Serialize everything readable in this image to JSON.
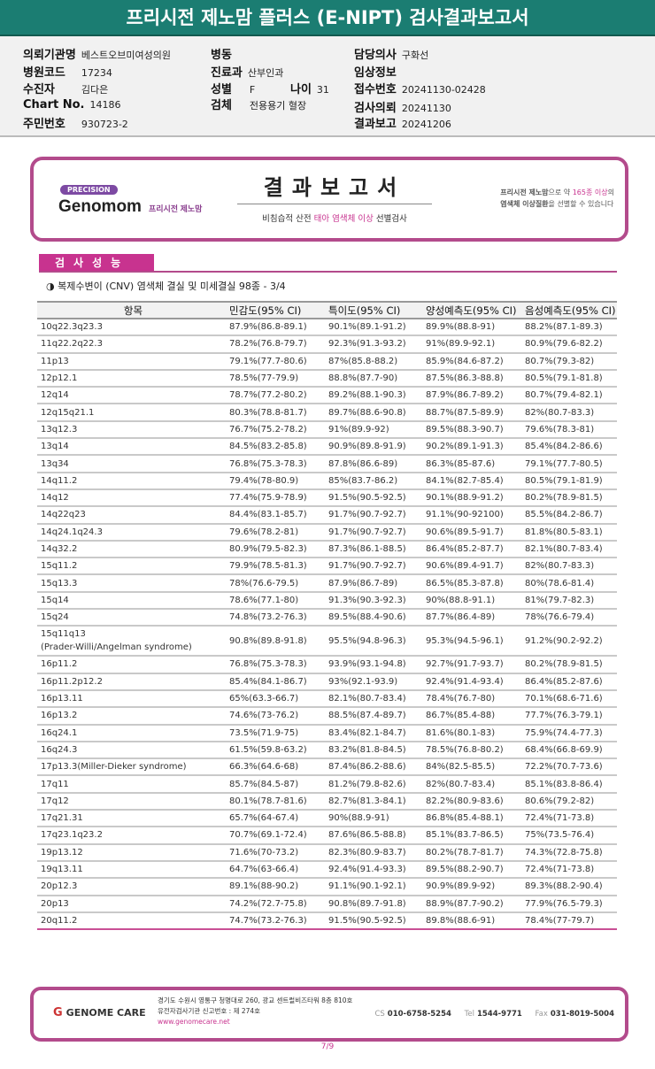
{
  "title": "프리시전 제노맘 플러스 (E-NIPT) 검사결과보고서",
  "info": {
    "institution": {
      "label": "의뢰기관명",
      "value": "베스트오브미여성의원"
    },
    "hospital_code": {
      "label": "병원코드",
      "value": "17234"
    },
    "patient": {
      "label": "수진자",
      "value": "김다은"
    },
    "chart_no": {
      "label": "Chart No.",
      "value": "14186"
    },
    "resident_no": {
      "label": "주민번호",
      "value": "930723-2"
    },
    "ward": {
      "label": "병동",
      "value": ""
    },
    "department": {
      "label": "진료과",
      "value": "산부인과"
    },
    "sex": {
      "label": "성별",
      "value": "F"
    },
    "age": {
      "label": "나이",
      "value": "31"
    },
    "specimen": {
      "label": "검체",
      "value": "전용용기 혈장"
    },
    "doctor": {
      "label": "담당의사",
      "value": "구화선"
    },
    "clinical": {
      "label": "임상정보",
      "value": ""
    },
    "receipt_no": {
      "label": "접수번호",
      "value": "20241130-02428"
    },
    "request_date": {
      "label": "검사의뢰",
      "value": "20241130"
    },
    "report_date": {
      "label": "결과보고",
      "value": "20241206"
    }
  },
  "banner": {
    "precision": "PRECISION",
    "brand": "Genomom",
    "brand_kr": "프리시전 제노맘",
    "title": "결과보고서",
    "subtitle_a": "비침습적 산전 ",
    "subtitle_b": "태아 염색체 이상",
    "subtitle_c": " 선별검사",
    "side_1a": "프리시전 제노맘",
    "side_1b": "으로 약 ",
    "side_1c": "165종 이상",
    "side_1d": "의",
    "side_2a": "염색체 이상질환",
    "side_2b": "을 선별할 수 있습니다"
  },
  "section": {
    "title": "검사성능",
    "subtitle": "◑ 복제수변이 (CNV) 염색체 결실 및 미세결실 98종 - 3/4"
  },
  "table": {
    "headers": [
      "항목",
      "민감도(95% CI)",
      "특이도(95% CI)",
      "양성예측도(95% CI)",
      "음성예측도(95% CI)"
    ],
    "rows": [
      [
        "10q22.3q23.3",
        "87.9%(86.8-89.1)",
        "90.1%(89.1-91.2)",
        "89.9%(88.8-91)",
        "88.2%(87.1-89.3)"
      ],
      [
        "11q22.2q22.3",
        "78.2%(76.8-79.7)",
        "92.3%(91.3-93.2)",
        "91%(89.9-92.1)",
        "80.9%(79.6-82.2)"
      ],
      [
        "11p13",
        "79.1%(77.7-80.6)",
        "87%(85.8-88.2)",
        "85.9%(84.6-87.2)",
        "80.7%(79.3-82)"
      ],
      [
        "12p12.1",
        "78.5%(77-79.9)",
        "88.8%(87.7-90)",
        "87.5%(86.3-88.8)",
        "80.5%(79.1-81.8)"
      ],
      [
        "12q14",
        "78.7%(77.2-80.2)",
        "89.2%(88.1-90.3)",
        "87.9%(86.7-89.2)",
        "80.7%(79.4-82.1)"
      ],
      [
        "12q15q21.1",
        "80.3%(78.8-81.7)",
        "89.7%(88.6-90.8)",
        "88.7%(87.5-89.9)",
        "82%(80.7-83.3)"
      ],
      [
        "13q12.3",
        "76.7%(75.2-78.2)",
        "91%(89.9-92)",
        "89.5%(88.3-90.7)",
        "79.6%(78.3-81)"
      ],
      [
        "13q14",
        "84.5%(83.2-85.8)",
        "90.9%(89.8-91.9)",
        "90.2%(89.1-91.3)",
        "85.4%(84.2-86.6)"
      ],
      [
        "13q34",
        "76.8%(75.3-78.3)",
        "87.8%(86.6-89)",
        "86.3%(85-87.6)",
        "79.1%(77.7-80.5)"
      ],
      [
        "14q11.2",
        "79.4%(78-80.9)",
        "85%(83.7-86.2)",
        "84.1%(82.7-85.4)",
        "80.5%(79.1-81.9)"
      ],
      [
        "14q12",
        "77.4%(75.9-78.9)",
        "91.5%(90.5-92.5)",
        "90.1%(88.9-91.2)",
        "80.2%(78.9-81.5)"
      ],
      [
        "14q22q23",
        "84.4%(83.1-85.7)",
        "91.7%(90.7-92.7)",
        "91.1%(90-92100)",
        "85.5%(84.2-86.7)"
      ],
      [
        "14q24.1q24.3",
        "79.6%(78.2-81)",
        "91.7%(90.7-92.7)",
        "90.6%(89.5-91.7)",
        "81.8%(80.5-83.1)"
      ],
      [
        "14q32.2",
        "80.9%(79.5-82.3)",
        "87.3%(86.1-88.5)",
        "86.4%(85.2-87.7)",
        "82.1%(80.7-83.4)"
      ],
      [
        "15q11.2",
        "79.9%(78.5-81.3)",
        "91.7%(90.7-92.7)",
        "90.6%(89.4-91.7)",
        "82%(80.7-83.3)"
      ],
      [
        "15q13.3",
        "78%(76.6-79.5)",
        "87.9%(86.7-89)",
        "86.5%(85.3-87.8)",
        "80%(78.6-81.4)"
      ],
      [
        "15q14",
        "78.6%(77.1-80)",
        "91.3%(90.3-92.3)",
        "90%(88.8-91.1)",
        "81%(79.7-82.3)"
      ],
      [
        "15q24",
        "74.8%(73.2-76.3)",
        "89.5%(88.4-90.6)",
        "87.7%(86.4-89)",
        "78%(76.6-79.4)"
      ],
      [
        "15q11q13\n(Prader-Willi/Angelman syndrome)",
        "90.8%(89.8-91.8)",
        "95.5%(94.8-96.3)",
        "95.3%(94.5-96.1)",
        "91.2%(90.2-92.2)"
      ],
      [
        "16p11.2",
        "76.8%(75.3-78.3)",
        "93.9%(93.1-94.8)",
        "92.7%(91.7-93.7)",
        "80.2%(78.9-81.5)"
      ],
      [
        "16p11.2p12.2",
        "85.4%(84.1-86.7)",
        "93%(92.1-93.9)",
        "92.4%(91.4-93.4)",
        "86.4%(85.2-87.6)"
      ],
      [
        "16p13.11",
        "65%(63.3-66.7)",
        "82.1%(80.7-83.4)",
        "78.4%(76.7-80)",
        "70.1%(68.6-71.6)"
      ],
      [
        "16p13.2",
        "74.6%(73-76.2)",
        "88.5%(87.4-89.7)",
        "86.7%(85.4-88)",
        "77.7%(76.3-79.1)"
      ],
      [
        "16q24.1",
        "73.5%(71.9-75)",
        "83.4%(82.1-84.7)",
        "81.6%(80.1-83)",
        "75.9%(74.4-77.3)"
      ],
      [
        "16q24.3",
        "61.5%(59.8-63.2)",
        "83.2%(81.8-84.5)",
        "78.5%(76.8-80.2)",
        "68.4%(66.8-69.9)"
      ],
      [
        "17p13.3(Miller-Dieker syndrome)",
        "66.3%(64.6-68)",
        "87.4%(86.2-88.6)",
        "84%(82.5-85.5)",
        "72.2%(70.7-73.6)"
      ],
      [
        "17q11",
        "85.7%(84.5-87)",
        "81.2%(79.8-82.6)",
        "82%(80.7-83.4)",
        "85.1%(83.8-86.4)"
      ],
      [
        "17q12",
        "80.1%(78.7-81.6)",
        "82.7%(81.3-84.1)",
        "82.2%(80.9-83.6)",
        "80.6%(79.2-82)"
      ],
      [
        "17q21.31",
        "65.7%(64-67.4)",
        "90%(88.9-91)",
        "86.8%(85.4-88.1)",
        "72.4%(71-73.8)"
      ],
      [
        "17q23.1q23.2",
        "70.7%(69.1-72.4)",
        "87.6%(86.5-88.8)",
        "85.1%(83.7-86.5)",
        "75%(73.5-76.4)"
      ],
      [
        "19p13.12",
        "71.6%(70-73.2)",
        "82.3%(80.9-83.7)",
        "80.2%(78.7-81.7)",
        "74.3%(72.8-75.8)"
      ],
      [
        "19q13.11",
        "64.7%(63-66.4)",
        "92.4%(91.4-93.3)",
        "89.5%(88.2-90.7)",
        "72.4%(71-73.8)"
      ],
      [
        "20p12.3",
        "89.1%(88-90.2)",
        "91.1%(90.1-92.1)",
        "90.9%(89.9-92)",
        "89.3%(88.2-90.4)"
      ],
      [
        "20p13",
        "74.2%(72.7-75.8)",
        "90.8%(89.7-91.8)",
        "88.9%(87.7-90.2)",
        "77.9%(76.5-79.3)"
      ],
      [
        "20q11.2",
        "74.7%(73.2-76.3)",
        "91.5%(90.5-92.5)",
        "89.8%(88.6-91)",
        "78.4%(77-79.7)"
      ]
    ]
  },
  "footer": {
    "logo": "GENOME CARE",
    "address": "경기도 수원시 영통구 청명대로 260, 광교 센트럴비즈타워 8층 810호",
    "registration": "유전자검사기관 신고번호 : 제 274호",
    "website": "www.genomecare.net",
    "cs_label": "CS",
    "cs": "010-6758-5254",
    "tel_label": "Tel",
    "tel": "1544-9771",
    "fax_label": "Fax",
    "fax": "031-8019-5004"
  },
  "page": "7/9",
  "colors": {
    "title_bar": "#1b7d72",
    "accent": "#c8338f",
    "border": "#b34b8c"
  }
}
